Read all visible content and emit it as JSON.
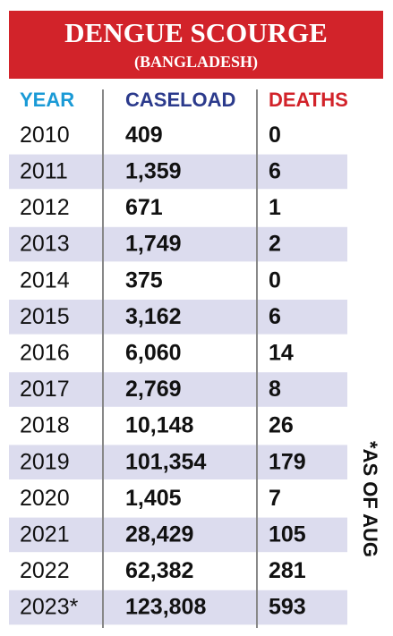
{
  "header": {
    "title": "DENGUE SCOURGE",
    "subtitle": "(BANGLADESH)"
  },
  "table": {
    "columns": [
      "YEAR",
      "CASELOAD",
      "DEATHS"
    ],
    "rows": [
      [
        "2010",
        "409",
        "0"
      ],
      [
        "2011",
        "1,359",
        "6"
      ],
      [
        "2012",
        "671",
        "1"
      ],
      [
        "2013",
        "1,749",
        "2"
      ],
      [
        "2014",
        "375",
        "0"
      ],
      [
        "2015",
        "3,162",
        "6"
      ],
      [
        "2016",
        "6,060",
        "14"
      ],
      [
        "2017",
        "2,769",
        "8"
      ],
      [
        "2018",
        "10,148",
        "26"
      ],
      [
        "2019",
        "101,354",
        "179"
      ],
      [
        "2020",
        "1,405",
        "7"
      ],
      [
        "2021",
        "28,429",
        "105"
      ],
      [
        "2022",
        "62,382",
        "281"
      ],
      [
        "2023*",
        "123,808",
        "593"
      ]
    ]
  },
  "note": "*AS OF AUG"
}
